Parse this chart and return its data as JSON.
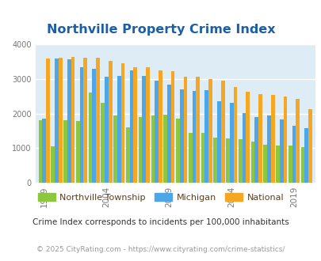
{
  "title": "Northville Property Crime Index",
  "title_color": "#1a5fa8",
  "background_color": "#deedf5",
  "fig_background": "#ffffff",
  "ylim": [
    0,
    4000
  ],
  "yticks": [
    0,
    1000,
    2000,
    3000,
    4000
  ],
  "years": [
    1999,
    2000,
    2001,
    2002,
    2003,
    2004,
    2005,
    2006,
    2007,
    2008,
    2009,
    2010,
    2011,
    2012,
    2013,
    2014,
    2015,
    2016,
    2017,
    2018,
    2019,
    2020
  ],
  "northville": [
    1800,
    1060,
    1800,
    1780,
    2600,
    2300,
    1950,
    1600,
    1900,
    1950,
    1970,
    1860,
    1450,
    1450,
    1300,
    1270,
    1250,
    1200,
    1090,
    1070,
    1070,
    1040
  ],
  "michigan": [
    1850,
    3580,
    3560,
    3350,
    3300,
    3060,
    3090,
    3240,
    3080,
    2950,
    2840,
    2700,
    2650,
    2680,
    2350,
    2320,
    2020,
    1900,
    1940,
    1820,
    1640,
    1580
  ],
  "national": [
    3600,
    3620,
    3640,
    3620,
    3610,
    3520,
    3460,
    3350,
    3340,
    3250,
    3230,
    3070,
    3060,
    3000,
    2960,
    2760,
    2620,
    2570,
    2550,
    2490,
    2430,
    2130
  ],
  "color_northville": "#8dc63f",
  "color_michigan": "#4da6e8",
  "color_national": "#f5a623",
  "legend_label_northville": "Northville Township",
  "legend_label_michigan": "Michigan",
  "legend_label_national": "National",
  "legend_text_color": "#5a3e1b",
  "subtitle": "Crime Index corresponds to incidents per 100,000 inhabitants",
  "subtitle_color": "#333333",
  "copyright": "© 2025 CityRating.com - https://www.cityrating.com/crime-statistics/",
  "copyright_color": "#999999",
  "x_tick_labels": [
    "1999",
    "2004",
    "2009",
    "2014",
    "2019"
  ],
  "x_tick_positions": [
    0,
    5,
    10,
    15,
    20
  ],
  "grid_color": "#ffffff",
  "bar_width": 0.3,
  "tick_label_color": "#777777"
}
